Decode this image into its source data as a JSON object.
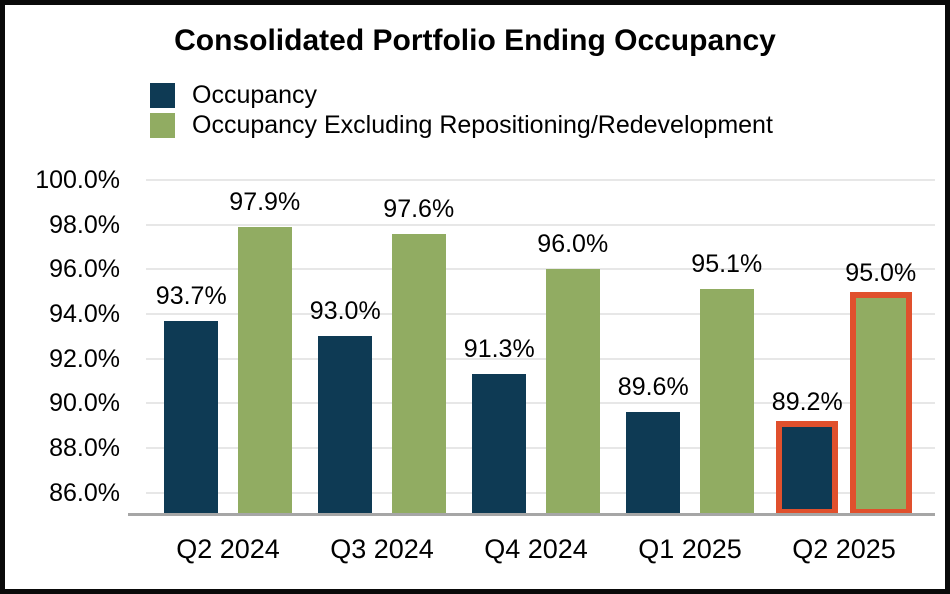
{
  "title": "Consolidated Portfolio Ending Occupancy",
  "legend": [
    {
      "label": "Occupancy",
      "color": "#0e3a54"
    },
    {
      "label": "Occupancy Excluding Repositioning/Redevelopment",
      "color": "#91ac62"
    }
  ],
  "colors": {
    "occupancy_bar": "#0e3a54",
    "excluding_bar": "#91ac62",
    "highlight_outline": "#e0502d",
    "gridline": "#e7e7e7",
    "axis_line": "#a6a6a6",
    "frame": "#0a0a0a"
  },
  "chart_data": {
    "type": "bar",
    "title": "Consolidated Portfolio Ending Occupancy",
    "categories": [
      "Q2 2024",
      "Q3 2024",
      "Q4 2024",
      "Q1 2025",
      "Q2 2025"
    ],
    "series": [
      {
        "name": "Occupancy",
        "color": "#0e3a54",
        "values": [
          93.7,
          93.0,
          91.3,
          89.6,
          89.2
        ]
      },
      {
        "name": "Occupancy Excluding Repositioning/Redevelopment",
        "color": "#91ac62",
        "values": [
          97.9,
          97.6,
          96.0,
          95.1,
          95.0
        ]
      }
    ],
    "data_labels": [
      [
        "93.7%",
        "93.0%",
        "91.3%",
        "89.6%",
        "89.2%"
      ],
      [
        "97.9%",
        "97.6%",
        "96.0%",
        "95.1%",
        "95.0%"
      ]
    ],
    "xlabel": "",
    "ylabel": "",
    "ylim": [
      85,
      100
    ],
    "ytick_values": [
      100,
      98,
      96,
      94,
      92,
      90,
      88,
      86
    ],
    "ytick_labels": [
      "100.0%",
      "98.0%",
      "96.0%",
      "94.0%",
      "92.0%",
      "90.0%",
      "88.0%",
      "86.0%"
    ],
    "grid": "horizontal",
    "legend_position": "top-left",
    "highlight": {
      "category": "Q2 2025",
      "outline_color": "#e0502d"
    }
  }
}
